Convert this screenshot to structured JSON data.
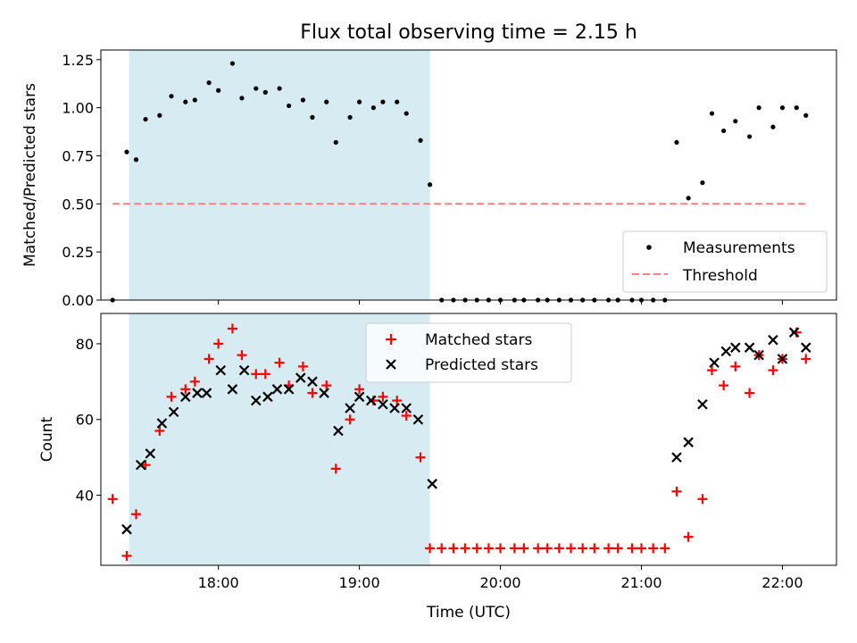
{
  "figure": {
    "title": "Flux total observing time = 2.15 h",
    "colors": {
      "shade": "#add8e6",
      "measurement": "#000000",
      "threshold": "#ff8080",
      "matched": "#ff0000",
      "predicted": "#000000"
    }
  },
  "chart_data": [
    {
      "type": "scatter",
      "ylabel": "Matched/Predicted stars",
      "ylim": [
        0,
        1.3
      ],
      "yticks": [
        0,
        0.25,
        0.5,
        0.75,
        1.0,
        1.25
      ],
      "ytick_labels": [
        "0.00",
        "0.25",
        "0.50",
        "0.75",
        "1.00",
        "1.25"
      ],
      "xlim": [
        "17:10",
        "22:23"
      ],
      "xticks": [
        "18:00",
        "19:00",
        "20:00",
        "21:00",
        "22:00"
      ],
      "shaded_interval": [
        "17:22",
        "19:30"
      ],
      "legend_position": "lower-right",
      "series": [
        {
          "name": "Measurements",
          "marker": "dot",
          "x": [
            "17:15",
            "17:21",
            "17:25",
            "17:29",
            "17:35",
            "17:40",
            "17:46",
            "17:50",
            "17:56",
            "18:00",
            "18:06",
            "18:10",
            "18:16",
            "18:20",
            "18:26",
            "18:30",
            "18:36",
            "18:40",
            "18:46",
            "18:50",
            "18:56",
            "19:00",
            "19:06",
            "19:10",
            "19:16",
            "19:20",
            "19:26",
            "19:30",
            "19:35",
            "19:40",
            "19:45",
            "19:50",
            "19:55",
            "20:00",
            "20:06",
            "20:10",
            "20:16",
            "20:20",
            "20:25",
            "20:30",
            "20:35",
            "20:40",
            "20:46",
            "20:50",
            "20:56",
            "21:00",
            "21:05",
            "21:10",
            "21:15",
            "21:20",
            "21:26",
            "21:30",
            "21:35",
            "21:40",
            "21:46",
            "21:50",
            "21:56",
            "22:00",
            "22:06",
            "22:10"
          ],
          "y": [
            0.0,
            0.77,
            0.73,
            0.94,
            0.96,
            1.06,
            1.03,
            1.04,
            1.13,
            1.09,
            1.23,
            1.05,
            1.1,
            1.08,
            1.1,
            1.01,
            1.04,
            0.95,
            1.03,
            0.82,
            0.95,
            1.03,
            1.0,
            1.03,
            1.03,
            0.97,
            0.83,
            0.6,
            0.0,
            0.0,
            0.0,
            0.0,
            0.0,
            0.0,
            0.0,
            0.0,
            0.0,
            0.0,
            0.0,
            0.0,
            0.0,
            0.0,
            0.0,
            0.0,
            0.0,
            0.0,
            0.0,
            0.0,
            0.82,
            0.53,
            0.61,
            0.97,
            0.88,
            0.93,
            0.85,
            1.0,
            0.9,
            1.0,
            1.0,
            0.96
          ]
        },
        {
          "name": "Threshold",
          "marker": "dashed-line",
          "x": [
            "17:15",
            "22:10"
          ],
          "y": [
            0.5,
            0.5
          ]
        }
      ]
    },
    {
      "type": "scatter",
      "xlabel": "Time (UTC)",
      "ylabel": "Count",
      "ylim": [
        21.5,
        88
      ],
      "yticks": [
        40,
        60,
        80
      ],
      "ytick_labels": [
        "40",
        "60",
        "80"
      ],
      "xlim": [
        "17:10",
        "22:23"
      ],
      "xticks": [
        "18:00",
        "19:00",
        "20:00",
        "21:00",
        "22:00"
      ],
      "xtick_labels": [
        "18:00",
        "19:00",
        "20:00",
        "21:00",
        "22:00"
      ],
      "shaded_interval": [
        "17:22",
        "19:30"
      ],
      "legend_position": "upper-center",
      "series": [
        {
          "name": "Matched stars",
          "marker": "plus",
          "x": [
            "17:15",
            "17:21",
            "17:25",
            "17:29",
            "17:35",
            "17:40",
            "17:46",
            "17:50",
            "17:56",
            "18:00",
            "18:06",
            "18:10",
            "18:16",
            "18:20",
            "18:26",
            "18:30",
            "18:36",
            "18:40",
            "18:46",
            "18:50",
            "18:56",
            "19:00",
            "19:06",
            "19:10",
            "19:16",
            "19:20",
            "19:26",
            "19:30",
            "19:35",
            "19:40",
            "19:45",
            "19:50",
            "19:55",
            "20:00",
            "20:06",
            "20:10",
            "20:16",
            "20:20",
            "20:25",
            "20:30",
            "20:35",
            "20:40",
            "20:46",
            "20:50",
            "20:56",
            "21:00",
            "21:05",
            "21:10",
            "21:15",
            "21:20",
            "21:26",
            "21:30",
            "21:35",
            "21:40",
            "21:46",
            "21:50",
            "21:56",
            "22:00",
            "22:06",
            "22:10"
          ],
          "y": [
            39,
            24,
            35,
            48,
            57,
            66,
            68,
            70,
            76,
            80,
            84,
            77,
            72,
            72,
            75,
            69,
            74,
            67,
            69,
            47,
            60,
            68,
            65,
            66,
            65,
            61,
            50,
            26,
            26,
            26,
            26,
            26,
            26,
            26,
            26,
            26,
            26,
            26,
            26,
            26,
            26,
            26,
            26,
            26,
            26,
            26,
            26,
            26,
            41,
            29,
            39,
            73,
            69,
            74,
            67,
            77,
            73,
            76,
            83,
            76
          ]
        },
        {
          "name": "Predicted stars",
          "marker": "x",
          "x": [
            "17:21",
            "17:27",
            "17:31",
            "17:36",
            "17:41",
            "17:46",
            "17:51",
            "17:55",
            "18:01",
            "18:06",
            "18:11",
            "18:16",
            "18:21",
            "18:25",
            "18:30",
            "18:35",
            "18:40",
            "18:45",
            "18:51",
            "18:56",
            "19:00",
            "19:05",
            "19:10",
            "19:15",
            "19:20",
            "19:25",
            "19:31",
            "21:15",
            "21:20",
            "21:26",
            "21:31",
            "21:36",
            "21:40",
            "21:46",
            "21:50",
            "21:56",
            "22:00",
            "22:05",
            "22:10"
          ],
          "y": [
            31,
            48,
            51,
            59,
            62,
            66,
            67,
            67,
            73,
            68,
            73,
            65,
            66,
            68,
            68,
            71,
            70,
            67,
            57,
            63,
            66,
            65,
            64,
            63,
            63,
            60,
            43,
            50,
            54,
            64,
            75,
            78,
            79,
            79,
            77,
            81,
            76,
            83,
            79
          ]
        }
      ]
    }
  ]
}
